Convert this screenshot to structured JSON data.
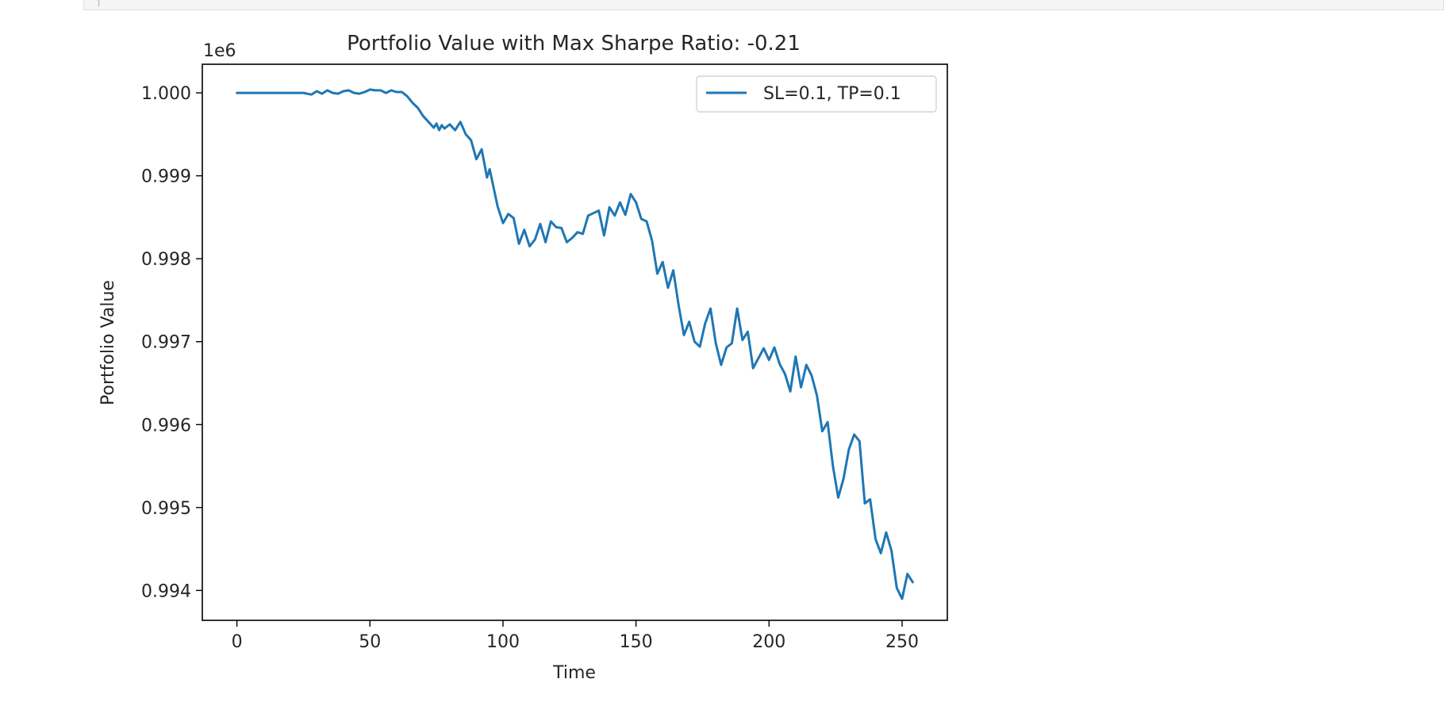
{
  "output_cell": {
    "top_strip_glyph": ")"
  },
  "chart_data": {
    "type": "line",
    "title": "Portfolio Value with Max Sharpe Ratio: -0.21",
    "xlabel": "Time",
    "ylabel": "Portfolio Value",
    "y_offset_label": "1e6",
    "xlim": [
      -13,
      267
    ],
    "ylim": [
      0.99364,
      1.000345
    ],
    "x_ticks": [
      0,
      50,
      100,
      150,
      200,
      250
    ],
    "x_tick_labels": [
      "0",
      "50",
      "100",
      "150",
      "200",
      "250"
    ],
    "y_ticks": [
      0.994,
      0.995,
      0.996,
      0.997,
      0.998,
      0.999,
      1.0
    ],
    "y_tick_labels": [
      "0.994",
      "0.995",
      "0.996",
      "0.997",
      "0.998",
      "0.999",
      "1.000"
    ],
    "grid": false,
    "legend_position": "top-right",
    "series": [
      {
        "name": "SL=0.1, TP=0.1",
        "color": "#1f77b4",
        "x": [
          0,
          5,
          10,
          15,
          20,
          25,
          28,
          30,
          32,
          34,
          36,
          38,
          40,
          42,
          44,
          46,
          48,
          50,
          52,
          54,
          56,
          58,
          60,
          62,
          64,
          66,
          68,
          70,
          72,
          74,
          75,
          76,
          77,
          78,
          80,
          82,
          84,
          86,
          88,
          90,
          92,
          94,
          95,
          96,
          98,
          100,
          102,
          104,
          106,
          108,
          110,
          112,
          114,
          116,
          118,
          120,
          122,
          124,
          126,
          128,
          130,
          132,
          134,
          136,
          138,
          140,
          142,
          144,
          146,
          148,
          150,
          152,
          154,
          156,
          158,
          160,
          162,
          164,
          166,
          168,
          170,
          172,
          174,
          176,
          178,
          180,
          182,
          184,
          186,
          188,
          190,
          192,
          194,
          196,
          198,
          200,
          202,
          204,
          206,
          208,
          210,
          212,
          214,
          216,
          218,
          220,
          222,
          224,
          226,
          228,
          230,
          232,
          234,
          236,
          238,
          240,
          242,
          244,
          246,
          248,
          250,
          252,
          254
        ],
        "values": [
          1.0,
          1.0,
          1.0,
          1.0,
          1.0,
          1.0,
          0.99998,
          1.00002,
          0.99999,
          1.00003,
          1.0,
          0.99999,
          1.00002,
          1.00003,
          1.0,
          0.99999,
          1.00001,
          1.00004,
          1.00003,
          1.00003,
          1.0,
          1.00003,
          1.00001,
          1.00001,
          0.99996,
          0.99988,
          0.99982,
          0.99972,
          0.99965,
          0.99958,
          0.99963,
          0.99955,
          0.99961,
          0.99957,
          0.99962,
          0.99955,
          0.99965,
          0.9995,
          0.99943,
          0.9992,
          0.99932,
          0.99898,
          0.99908,
          0.99893,
          0.99863,
          0.99843,
          0.99854,
          0.99849,
          0.99818,
          0.99835,
          0.99815,
          0.99823,
          0.99842,
          0.9982,
          0.99845,
          0.99838,
          0.99837,
          0.9982,
          0.99825,
          0.99832,
          0.9983,
          0.99852,
          0.99855,
          0.99858,
          0.99828,
          0.99862,
          0.99852,
          0.99868,
          0.99853,
          0.99878,
          0.99868,
          0.99848,
          0.99845,
          0.99822,
          0.99782,
          0.99796,
          0.99765,
          0.99786,
          0.99744,
          0.99708,
          0.99724,
          0.997,
          0.99694,
          0.99722,
          0.9974,
          0.99698,
          0.99672,
          0.99693,
          0.99698,
          0.9974,
          0.99702,
          0.99712,
          0.99668,
          0.9968,
          0.99692,
          0.99678,
          0.99693,
          0.99673,
          0.99661,
          0.9964,
          0.99682,
          0.99645,
          0.99672,
          0.99659,
          0.99635,
          0.99592,
          0.99603,
          0.9955,
          0.99512,
          0.99535,
          0.9957,
          0.99588,
          0.9958,
          0.99505,
          0.9951,
          0.99462,
          0.99445,
          0.9947,
          0.99448,
          0.99403,
          0.9939,
          0.9942,
          0.9941
        ]
      }
    ]
  }
}
